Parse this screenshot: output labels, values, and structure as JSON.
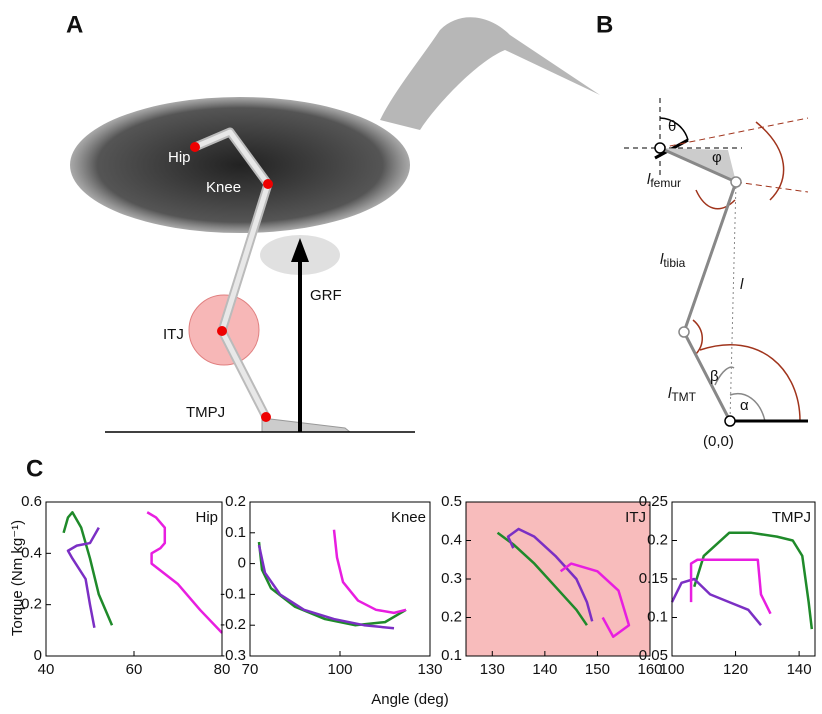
{
  "panels": {
    "a": "A",
    "b": "B",
    "c": "C"
  },
  "panel_a": {
    "hip": "Hip",
    "knee": "Knee",
    "itj": "ITJ",
    "tmpj": "TMPJ",
    "grf": "GRF"
  },
  "panel_b": {
    "theta": "θ",
    "phi": "φ",
    "femur": {
      "symbol": "l",
      "sub": "femur"
    },
    "tibia": {
      "symbol": "l",
      "sub": "tibia"
    },
    "length": "l",
    "beta": "β",
    "tmt": {
      "symbol": "l",
      "sub": "TMT"
    },
    "alpha": "α",
    "origin": "(0,0)"
  },
  "y_label": "Torque (Nm kg⁻¹)",
  "x_label": "Angle (deg)",
  "chart_data": [
    {
      "type": "line",
      "title": "Hip",
      "xlim": [
        40,
        80
      ],
      "xticks": [
        40,
        60,
        80
      ],
      "ylim": [
        0,
        0.6
      ],
      "yticks": [
        0,
        0.2,
        0.4,
        0.6
      ],
      "series": [
        {
          "color": "#1f8a2a",
          "x": [
            44,
            45,
            46,
            48,
            50,
            52,
            55
          ],
          "values": [
            0.48,
            0.54,
            0.56,
            0.5,
            0.38,
            0.24,
            0.12
          ]
        },
        {
          "color": "#7b2fc4",
          "x": [
            52,
            50,
            47,
            45,
            46,
            49,
            50,
            51
          ],
          "values": [
            0.5,
            0.44,
            0.43,
            0.41,
            0.38,
            0.3,
            0.2,
            0.11
          ]
        },
        {
          "color": "#e81ee0",
          "x": [
            63,
            65,
            67,
            67,
            66,
            64,
            64,
            70,
            75,
            80
          ],
          "values": [
            0.56,
            0.54,
            0.5,
            0.44,
            0.42,
            0.4,
            0.36,
            0.28,
            0.18,
            0.09
          ]
        }
      ]
    },
    {
      "type": "line",
      "title": "Knee",
      "xlim": [
        70,
        130
      ],
      "xticks": [
        70,
        100,
        130
      ],
      "ylim": [
        -0.3,
        0.2
      ],
      "yticks": [
        -0.3,
        -0.2,
        -0.1,
        0,
        0.1,
        0.2
      ],
      "series": [
        {
          "color": "#1f8a2a",
          "x": [
            73,
            74,
            77,
            85,
            95,
            105,
            115,
            122
          ],
          "values": [
            0.07,
            -0.02,
            -0.08,
            -0.14,
            -0.18,
            -0.2,
            -0.19,
            -0.15
          ]
        },
        {
          "color": "#7b2fc4",
          "x": [
            73,
            75,
            80,
            88,
            98,
            108,
            118
          ],
          "values": [
            0.06,
            -0.03,
            -0.1,
            -0.15,
            -0.18,
            -0.2,
            -0.21
          ]
        },
        {
          "color": "#e81ee0",
          "x": [
            98,
            99,
            101,
            106,
            112,
            118,
            122
          ],
          "values": [
            0.11,
            0.02,
            -0.06,
            -0.12,
            -0.15,
            -0.16,
            -0.15
          ]
        }
      ]
    },
    {
      "type": "line",
      "title": "ITJ",
      "background": "#f8bcbc",
      "xlim": [
        125,
        160
      ],
      "xticks": [
        130,
        140,
        150,
        160
      ],
      "ylim": [
        0.1,
        0.5
      ],
      "yticks": [
        0.1,
        0.2,
        0.3,
        0.4,
        0.5
      ],
      "series": [
        {
          "color": "#1f8a2a",
          "x": [
            131,
            134,
            138,
            142,
            146,
            148
          ],
          "values": [
            0.42,
            0.39,
            0.34,
            0.28,
            0.22,
            0.18
          ]
        },
        {
          "color": "#7b2fc4",
          "x": [
            134,
            133,
            135,
            138,
            142,
            146,
            148,
            149
          ],
          "values": [
            0.38,
            0.41,
            0.43,
            0.41,
            0.36,
            0.3,
            0.24,
            0.19
          ]
        },
        {
          "color": "#e81ee0",
          "x": [
            143,
            145,
            150,
            154,
            156,
            153,
            151
          ],
          "values": [
            0.32,
            0.34,
            0.32,
            0.27,
            0.18,
            0.15,
            0.2
          ]
        }
      ]
    },
    {
      "type": "line",
      "title": "TMPJ",
      "xlim": [
        100,
        145
      ],
      "xticks": [
        100,
        120,
        140
      ],
      "ylim": [
        0.05,
        0.25
      ],
      "yticks": [
        0.05,
        0.1,
        0.15,
        0.2,
        0.25
      ],
      "series": [
        {
          "color": "#1f8a2a",
          "x": [
            107,
            110,
            118,
            125,
            133,
            138,
            141,
            143,
            144
          ],
          "values": [
            0.14,
            0.18,
            0.21,
            0.21,
            0.205,
            0.2,
            0.18,
            0.12,
            0.085
          ]
        },
        {
          "color": "#7b2fc4",
          "x": [
            100,
            103,
            107,
            112,
            118,
            124,
            128
          ],
          "values": [
            0.12,
            0.145,
            0.15,
            0.13,
            0.12,
            0.11,
            0.09
          ]
        },
        {
          "color": "#e81ee0",
          "x": [
            106,
            106,
            108,
            120,
            127,
            128,
            131
          ],
          "values": [
            0.12,
            0.17,
            0.175,
            0.175,
            0.175,
            0.13,
            0.105
          ]
        }
      ]
    }
  ]
}
